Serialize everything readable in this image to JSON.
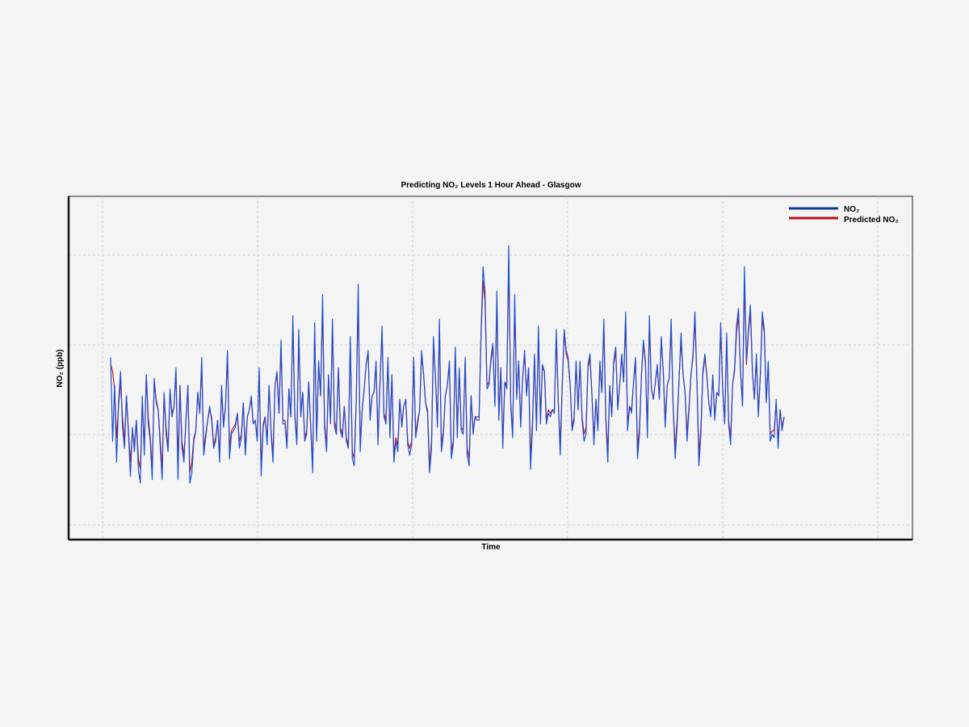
{
  "chart_data": {
    "type": "line",
    "title": "Predicting NO₂ Levels 1 Hour Ahead - Glasgow",
    "xlabel": "Time",
    "ylabel": "NO₂ (ppb)",
    "grid": true,
    "legend_position": "top-right",
    "colors": {
      "observed": "#1f4fd1",
      "predicted": "#c0171d",
      "legend_observed": "#0b3a9c",
      "legend_predicted": "#b3121a"
    },
    "series": [
      {
        "name": "NO₂",
        "values": [
          48,
          24,
          40,
          18,
          35,
          44,
          28,
          22,
          37,
          26,
          14,
          28,
          21,
          30,
          16,
          12,
          37,
          20,
          43,
          29,
          24,
          13,
          42,
          35,
          33,
          23,
          13,
          38,
          26,
          21,
          39,
          31,
          34,
          45,
          13,
          40,
          22,
          18,
          30,
          40,
          12,
          15,
          24,
          27,
          38,
          32,
          48,
          20,
          25,
          30,
          34,
          30,
          22,
          24,
          30,
          18,
          40,
          28,
          34,
          50,
          19,
          26,
          27,
          28,
          32,
          22,
          25,
          35,
          20,
          31,
          33,
          37,
          29,
          30,
          24,
          45,
          14,
          28,
          31,
          23,
          40,
          26,
          18,
          40,
          44,
          32,
          53,
          29,
          29,
          22,
          39,
          31,
          60,
          31,
          23,
          56,
          31,
          38,
          24,
          26,
          41,
          28,
          15,
          58,
          24,
          47,
          37,
          66,
          28,
          21,
          43,
          29,
          59,
          28,
          26,
          45,
          27,
          25,
          34,
          24,
          22,
          54,
          19,
          17,
          36,
          69,
          21,
          33,
          39,
          46,
          50,
          30,
          37,
          38,
          47,
          23,
          41,
          57,
          31,
          29,
          48,
          25,
          43,
          18,
          24,
          21,
          36,
          28,
          34,
          36,
          23,
          20,
          23,
          48,
          25,
          29,
          33,
          50,
          43,
          35,
          32,
          15,
          22,
          54,
          42,
          28,
          59,
          21,
          26,
          37,
          40,
          47,
          19,
          23,
          51,
          25,
          45,
          27,
          26,
          48,
          20,
          17,
          37,
          26,
          31,
          30,
          30,
          55,
          74,
          67,
          39,
          40,
          48,
          52,
          34,
          67,
          30,
          45,
          22,
          41,
          39,
          80,
          34,
          25,
          66,
          36,
          47,
          28,
          42,
          50,
          37,
          45,
          16,
          28,
          49,
          27,
          57,
          29,
          46,
          44,
          29,
          32,
          31,
          33,
          32,
          56,
          35,
          20,
          40,
          56,
          50,
          48,
          40,
          27,
          30,
          47,
          33,
          47,
          30,
          24,
          26,
          46,
          49,
          37,
          23,
          36,
          27,
          47,
          38,
          59,
          30,
          18,
          40,
          31,
          47,
          51,
          33,
          40,
          49,
          41,
          61,
          27,
          34,
          32,
          41,
          48,
          19,
          26,
          43,
          53,
          47,
          25,
          60,
          39,
          36,
          41,
          46,
          36,
          54,
          44,
          28,
          40,
          42,
          59,
          34,
          19,
          28,
          42,
          55,
          43,
          38,
          24,
          33,
          43,
          49,
          61,
          41,
          17,
          26,
          44,
          49,
          43,
          35,
          31,
          43,
          30,
          38,
          37,
          58,
          39,
          29,
          55,
          29,
          23,
          40,
          45,
          57,
          62,
          44,
          34,
          74,
          47,
          56,
          63,
          44,
          36,
          49,
          31,
          43,
          61,
          56,
          35,
          47,
          24,
          26,
          25,
          36,
          22,
          33,
          27,
          31
        ],
        "note_values_in_ppb": ""
      },
      {
        "name": "Predicted NO₂",
        "values": [
          46,
          44,
          39,
          25,
          34,
          41,
          31,
          24,
          37,
          27,
          18,
          27,
          23,
          30,
          19,
          16,
          36,
          22,
          43,
          31,
          25,
          16,
          41,
          36,
          33,
          25,
          16,
          37,
          28,
          22,
          38,
          32,
          34,
          44,
          18,
          40,
          24,
          20,
          29,
          40,
          15,
          18,
          25,
          27,
          38,
          32,
          46,
          22,
          26,
          30,
          33,
          31,
          23,
          25,
          30,
          20,
          39,
          29,
          34,
          49,
          22,
          27,
          28,
          29,
          32,
          24,
          26,
          35,
          22,
          31,
          33,
          36,
          29,
          30,
          25,
          44,
          17,
          29,
          31,
          24,
          40,
          27,
          20,
          40,
          43,
          32,
          51,
          30,
          30,
          23,
          39,
          31,
          58,
          32,
          24,
          54,
          32,
          38,
          25,
          27,
          41,
          29,
          17,
          56,
          26,
          46,
          37,
          62,
          30,
          22,
          43,
          30,
          57,
          30,
          27,
          45,
          28,
          26,
          34,
          25,
          23,
          52,
          21,
          19,
          36,
          65,
          23,
          33,
          39,
          46,
          49,
          31,
          37,
          38,
          46,
          25,
          41,
          55,
          32,
          30,
          47,
          26,
          43,
          20,
          25,
          23,
          36,
          29,
          34,
          36,
          24,
          22,
          24,
          47,
          26,
          30,
          33,
          49,
          43,
          35,
          33,
          17,
          24,
          52,
          42,
          29,
          57,
          23,
          27,
          37,
          40,
          46,
          21,
          24,
          50,
          27,
          44,
          28,
          27,
          47,
          22,
          19,
          37,
          27,
          31,
          31,
          31,
          54,
          70,
          64,
          40,
          41,
          47,
          51,
          35,
          64,
          31,
          45,
          24,
          41,
          40,
          76,
          35,
          26,
          63,
          37,
          47,
          29,
          42,
          49,
          38,
          45,
          19,
          30,
          48,
          28,
          55,
          31,
          45,
          44,
          30,
          33,
          32,
          33,
          33,
          54,
          35,
          23,
          40,
          55,
          49,
          47,
          40,
          28,
          31,
          46,
          33,
          46,
          31,
          26,
          28,
          45,
          48,
          37,
          25,
          36,
          28,
          46,
          38,
          57,
          31,
          21,
          40,
          32,
          46,
          50,
          34,
          40,
          48,
          41,
          59,
          29,
          34,
          33,
          41,
          47,
          22,
          28,
          43,
          52,
          46,
          27,
          58,
          39,
          36,
          41,
          45,
          37,
          53,
          44,
          30,
          40,
          42,
          57,
          34,
          22,
          30,
          42,
          53,
          43,
          38,
          26,
          34,
          43,
          48,
          59,
          41,
          20,
          28,
          43,
          48,
          43,
          35,
          32,
          43,
          31,
          38,
          37,
          56,
          39,
          30,
          53,
          30,
          25,
          40,
          44,
          55,
          60,
          44,
          35,
          70,
          46,
          55,
          61,
          44,
          36,
          48,
          32,
          43,
          59,
          55,
          36,
          46,
          26,
          27,
          27,
          35,
          24,
          33,
          28,
          31
        ],
        "note_values_in_ppb": ""
      }
    ],
    "x_ticks": [
      "",
      "",
      "",
      "",
      "",
      ""
    ],
    "y_ticks": [
      "",
      "",
      "",
      ""
    ],
    "ylim": [
      0,
      90
    ]
  }
}
